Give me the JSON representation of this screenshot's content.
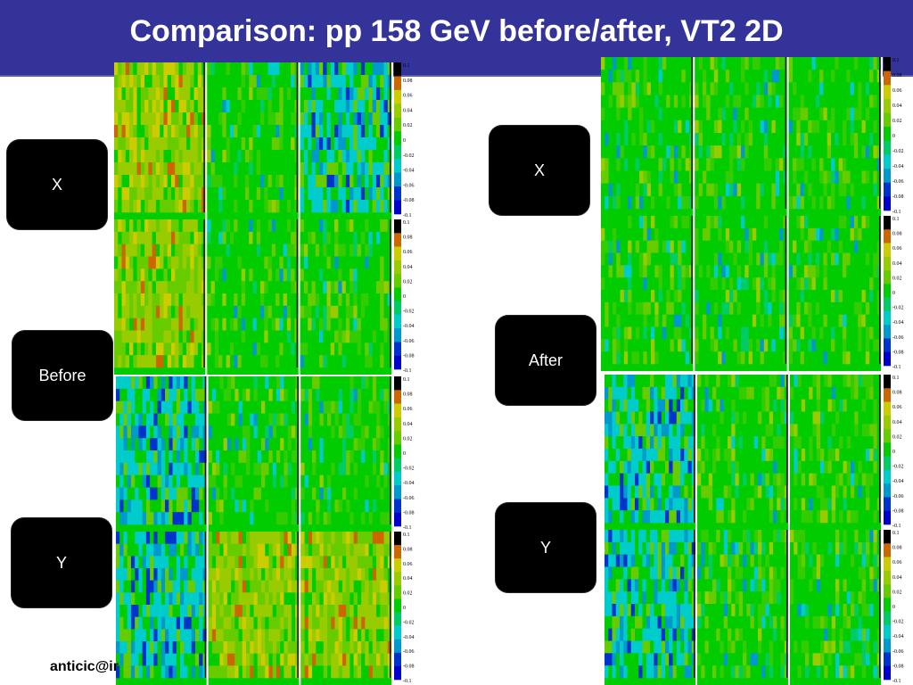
{
  "slide": {
    "title": "Comparison: pp 158 GeV before/after, VT2 2D",
    "footer": "anticic@ir"
  },
  "labels": {
    "before_x": "X",
    "before": "Before",
    "before_y": "Y",
    "after_x": "X",
    "after": "After",
    "after_y": "Y"
  },
  "color_scale": {
    "ticks": [
      "0.1",
      "0.08",
      "0.06",
      "0.04",
      "0.02",
      "0",
      "-0.02",
      "-0.04",
      "-0.06",
      "-0.08",
      "-0.1"
    ],
    "colors": [
      "#000000",
      "#cc6600",
      "#cccc00",
      "#99cc00",
      "#66cc00",
      "#00cc00",
      "#00cc66",
      "#00cccc",
      "#0099cc",
      "#0033cc",
      "#0000cc"
    ]
  },
  "colors": {
    "header_bg": "#333399",
    "label_bg": "#000000",
    "label_text": "#ffffff"
  }
}
